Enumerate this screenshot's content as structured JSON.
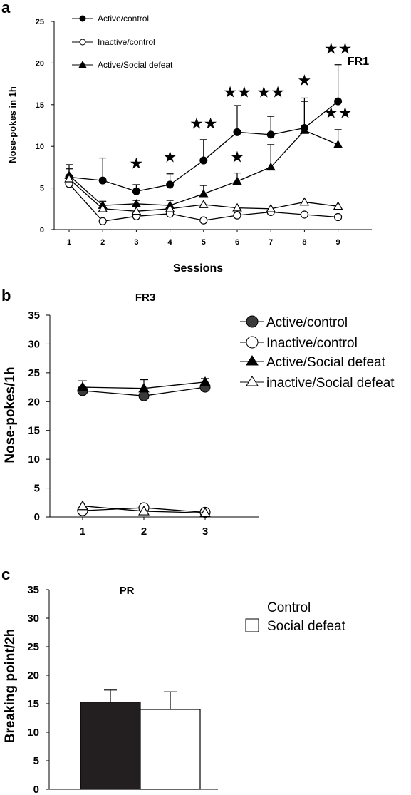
{
  "chart_data": [
    {
      "panel": "a",
      "type": "line",
      "title": "FR1",
      "xlabel": "Sessions",
      "ylabel": "Nose-pokes in 1h",
      "x": [
        1,
        2,
        3,
        4,
        5,
        6,
        7,
        8,
        9
      ],
      "ylim": [
        0,
        25
      ],
      "yticks": [
        0,
        5,
        10,
        15,
        20,
        25
      ],
      "legend": "top-left",
      "series": [
        {
          "name": "Active/control",
          "marker": "filled-circle",
          "values": [
            6.3,
            5.9,
            4.6,
            5.4,
            8.3,
            11.7,
            11.4,
            12.2,
            15.4
          ],
          "errors": [
            1.5,
            2.7,
            0.8,
            1.3,
            2.5,
            3.2,
            2.2,
            3.6,
            4.4
          ]
        },
        {
          "name": "Inactive/control",
          "marker": "open-circle",
          "values": [
            5.5,
            1.0,
            1.6,
            1.9,
            1.1,
            1.7,
            2.1,
            1.8,
            1.5
          ],
          "errors": [
            0,
            0,
            0,
            0,
            0,
            0,
            0,
            0,
            0
          ]
        },
        {
          "name": "Active/Social defeat",
          "marker": "filled-triangle",
          "values": [
            6.5,
            2.9,
            3.1,
            2.9,
            4.3,
            5.8,
            7.5,
            11.9,
            10.2
          ],
          "errors": [
            0.8,
            0.5,
            0.4,
            0.6,
            1.0,
            1.0,
            2.7,
            3.5,
            1.8
          ]
        },
        {
          "name": "",
          "marker": "open-triangle",
          "values": [
            6.1,
            2.5,
            2.2,
            2.5,
            3.0,
            2.6,
            2.5,
            3.3,
            2.8
          ],
          "errors": [
            0,
            0,
            0,
            0,
            0,
            0,
            0,
            0,
            0
          ]
        }
      ],
      "annotations": [
        {
          "label": "★",
          "x": 3,
          "y": 7.3
        },
        {
          "label": "★",
          "x": 4,
          "y": 8.1
        },
        {
          "label": "★★",
          "x": 5,
          "y": 12.1
        },
        {
          "label": "★★",
          "x": 6,
          "y": 15.9
        },
        {
          "label": "★",
          "x": 6,
          "y": 8.1
        },
        {
          "label": "★★",
          "x": 7,
          "y": 15.9
        },
        {
          "label": "★",
          "x": 8,
          "y": 17.3
        },
        {
          "label": "★★",
          "x": 9,
          "y": 21.1
        },
        {
          "label": "★★",
          "x": 9,
          "y": 13.4
        }
      ]
    },
    {
      "panel": "b",
      "type": "line",
      "title": "FR3",
      "xlabel": "",
      "ylabel": "Nose-pokes/1h",
      "x": [
        1,
        2,
        3
      ],
      "ylim": [
        0,
        35
      ],
      "yticks": [
        0,
        5,
        10,
        15,
        20,
        25,
        30,
        35
      ],
      "legend": "right",
      "series": [
        {
          "name": "Active/control",
          "marker": "filled-circle",
          "values": [
            21.9,
            21.0,
            22.5
          ],
          "errors": [
            0.6,
            0.6,
            0.6
          ]
        },
        {
          "name": "Inactive/control",
          "marker": "open-circle",
          "values": [
            1.1,
            1.6,
            0.8
          ],
          "errors": [
            0,
            0,
            0
          ]
        },
        {
          "name": "Active/Social defeat",
          "marker": "filled-triangle",
          "values": [
            22.5,
            22.3,
            23.4
          ],
          "errors": [
            1.1,
            1.5,
            0.6
          ]
        },
        {
          "name": "inactive/Social defeat",
          "marker": "open-triangle",
          "values": [
            1.9,
            1.0,
            0.7
          ],
          "errors": [
            0,
            0,
            0
          ]
        }
      ]
    },
    {
      "panel": "c",
      "type": "bar",
      "title": "PR",
      "xlabel": "",
      "ylabel": "Breaking point/2h",
      "ylim": [
        0,
        35
      ],
      "yticks": [
        0,
        5,
        10,
        15,
        20,
        25,
        30,
        35
      ],
      "legend": "right",
      "categories": [
        "Control",
        "Social defeat"
      ],
      "values": [
        15.3,
        14.0
      ],
      "errors": [
        2.1,
        3.1
      ],
      "colors": [
        "#231f20",
        "#ffffff"
      ]
    }
  ]
}
